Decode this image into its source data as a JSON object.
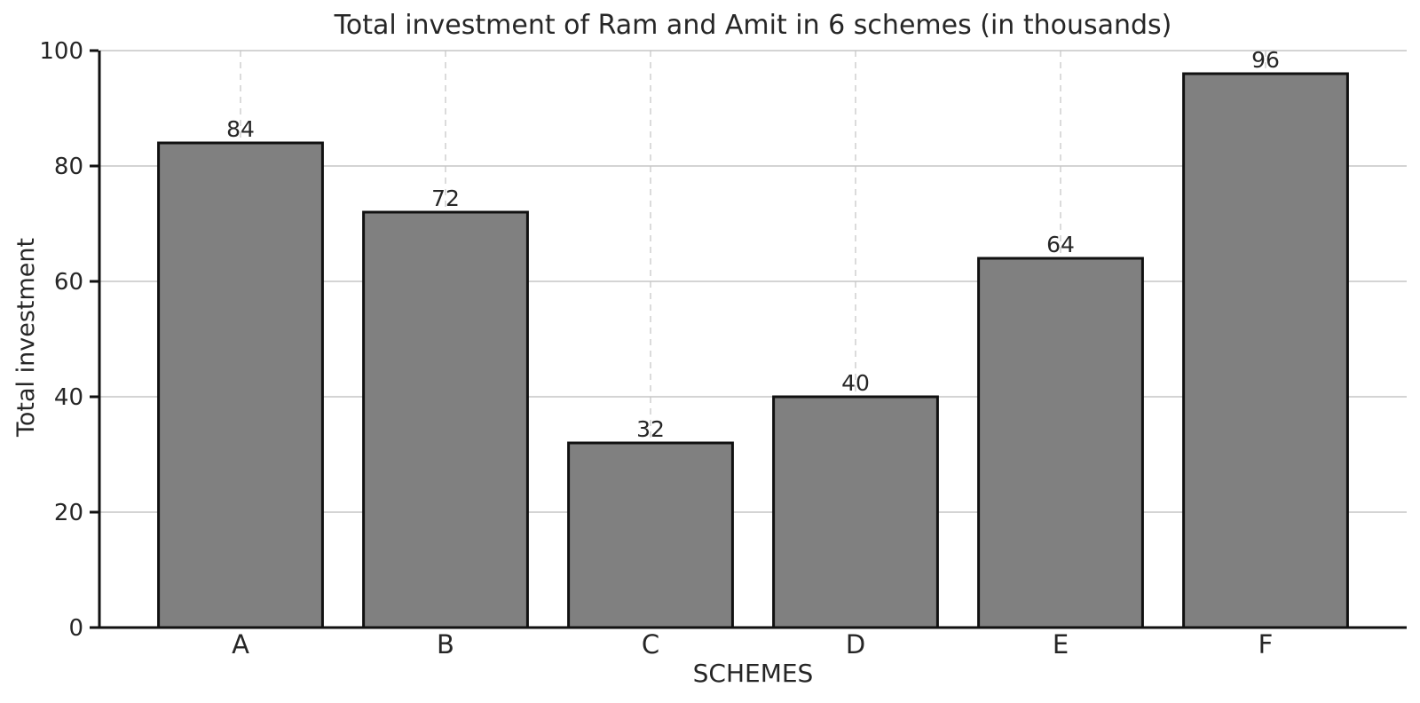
{
  "chart_data": {
    "type": "bar",
    "title": "Total investment of Ram and Amit in 6 schemes (in thousands)",
    "xlabel": "SCHEMES",
    "ylabel": "Total investment",
    "categories": [
      "A",
      "B",
      "C",
      "D",
      "E",
      "F"
    ],
    "values": [
      84,
      72,
      32,
      40,
      64,
      96
    ],
    "bar_value_labels": [
      "84",
      "72",
      "32",
      "40",
      "64",
      "96"
    ],
    "ylim": [
      0,
      100
    ],
    "yticks": [
      0,
      20,
      40,
      60,
      80,
      100
    ],
    "legend": "none",
    "grid": {
      "horizontal_style": "solid",
      "vertical_style": "dashed"
    },
    "colors": {
      "bar_fill": "#808080",
      "bar_edge": "#111111",
      "grid_solid": "#c6c6c6",
      "grid_dashed": "#d2d2d2",
      "axis": "#111111",
      "text": "#262626",
      "background": "#ffffff"
    }
  }
}
